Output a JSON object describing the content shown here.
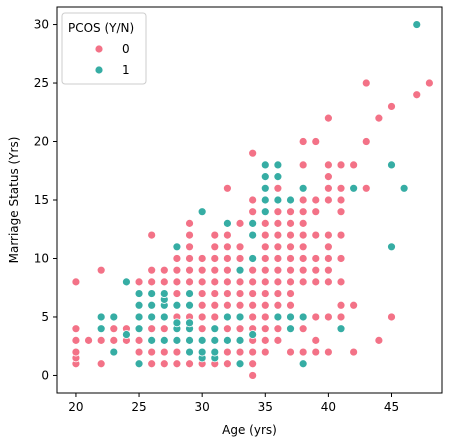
{
  "chart_data": {
    "type": "scatter",
    "title": "",
    "xlabel": "Age (yrs)",
    "ylabel": "Marriage Status (Yrs)",
    "xlim": [
      18.5,
      49.0
    ],
    "ylim": [
      -1.5,
      31.5
    ],
    "xticks": [
      20,
      25,
      30,
      35,
      40,
      45
    ],
    "yticks": [
      0,
      5,
      10,
      15,
      20,
      25,
      30
    ],
    "grid": false,
    "legend": {
      "title": "PCOS (Y/N)",
      "placement": "top-left"
    },
    "series": [
      {
        "name": "0",
        "color": "#f37287",
        "points": [
          [
            20,
            1
          ],
          [
            20,
            1.5
          ],
          [
            20,
            2
          ],
          [
            20,
            3
          ],
          [
            20,
            4
          ],
          [
            20,
            8
          ],
          [
            21,
            3
          ],
          [
            22,
            1
          ],
          [
            22,
            3
          ],
          [
            22,
            4
          ],
          [
            22,
            9
          ],
          [
            23,
            2
          ],
          [
            23,
            3
          ],
          [
            23,
            4
          ],
          [
            24,
            3
          ],
          [
            24,
            4
          ],
          [
            25,
            1
          ],
          [
            25,
            2
          ],
          [
            25,
            3
          ],
          [
            25,
            4
          ],
          [
            25,
            5
          ],
          [
            25,
            6
          ],
          [
            25,
            8
          ],
          [
            26,
            1
          ],
          [
            26,
            2
          ],
          [
            26,
            3
          ],
          [
            26,
            4
          ],
          [
            26,
            5
          ],
          [
            26,
            6
          ],
          [
            26,
            7
          ],
          [
            26,
            8
          ],
          [
            26,
            9
          ],
          [
            26,
            12
          ],
          [
            27,
            1
          ],
          [
            27,
            2
          ],
          [
            27,
            3
          ],
          [
            27,
            4
          ],
          [
            27,
            5
          ],
          [
            27,
            6
          ],
          [
            27,
            7
          ],
          [
            27,
            8
          ],
          [
            27,
            9
          ],
          [
            28,
            1
          ],
          [
            28,
            2
          ],
          [
            28,
            3
          ],
          [
            28,
            4
          ],
          [
            28,
            5
          ],
          [
            28,
            6
          ],
          [
            28,
            7
          ],
          [
            28,
            8
          ],
          [
            28,
            9
          ],
          [
            28,
            10
          ],
          [
            28,
            11
          ],
          [
            29,
            1
          ],
          [
            29,
            2
          ],
          [
            29,
            3
          ],
          [
            29,
            4
          ],
          [
            29,
            5
          ],
          [
            29,
            6
          ],
          [
            29,
            7
          ],
          [
            29,
            8
          ],
          [
            29,
            9
          ],
          [
            29,
            10
          ],
          [
            29,
            11
          ],
          [
            29,
            12
          ],
          [
            29,
            13
          ],
          [
            30,
            1
          ],
          [
            30,
            2
          ],
          [
            30,
            3
          ],
          [
            30,
            4
          ],
          [
            30,
            5
          ],
          [
            30,
            6
          ],
          [
            30,
            7
          ],
          [
            30,
            8
          ],
          [
            30,
            9
          ],
          [
            30,
            10
          ],
          [
            31,
            1
          ],
          [
            31,
            2
          ],
          [
            31,
            3
          ],
          [
            31,
            4
          ],
          [
            31,
            5
          ],
          [
            31,
            6
          ],
          [
            31,
            7
          ],
          [
            31,
            8
          ],
          [
            31,
            9
          ],
          [
            31,
            10
          ],
          [
            31,
            11
          ],
          [
            31,
            12
          ],
          [
            32,
            1
          ],
          [
            32,
            2
          ],
          [
            32,
            3
          ],
          [
            32,
            4
          ],
          [
            32,
            5
          ],
          [
            32,
            6
          ],
          [
            32,
            7
          ],
          [
            32,
            8
          ],
          [
            32,
            9
          ],
          [
            32,
            10
          ],
          [
            32,
            11
          ],
          [
            32,
            12
          ],
          [
            32,
            16
          ],
          [
            33,
            1
          ],
          [
            33,
            2
          ],
          [
            33,
            3
          ],
          [
            33,
            4
          ],
          [
            33,
            5
          ],
          [
            33,
            6
          ],
          [
            33,
            7
          ],
          [
            33,
            8
          ],
          [
            33,
            9
          ],
          [
            33,
            10
          ],
          [
            33,
            11
          ],
          [
            33,
            13
          ],
          [
            34,
            0
          ],
          [
            34,
            1
          ],
          [
            34,
            2
          ],
          [
            34,
            3
          ],
          [
            34,
            4
          ],
          [
            34,
            5
          ],
          [
            34,
            6
          ],
          [
            34,
            7
          ],
          [
            34,
            8
          ],
          [
            34,
            9
          ],
          [
            34,
            10
          ],
          [
            34,
            12
          ],
          [
            34,
            13
          ],
          [
            34,
            14
          ],
          [
            34,
            15
          ],
          [
            34,
            19
          ],
          [
            35,
            2
          ],
          [
            35,
            3
          ],
          [
            35,
            4
          ],
          [
            35,
            5
          ],
          [
            35,
            6
          ],
          [
            35,
            7
          ],
          [
            35,
            8
          ],
          [
            35,
            9
          ],
          [
            35,
            10
          ],
          [
            35,
            11
          ],
          [
            35,
            12
          ],
          [
            35,
            13
          ],
          [
            35,
            14
          ],
          [
            35,
            15
          ],
          [
            35,
            16
          ],
          [
            35,
            17
          ],
          [
            36,
            3
          ],
          [
            36,
            4
          ],
          [
            36,
            6
          ],
          [
            36,
            7
          ],
          [
            36,
            8
          ],
          [
            36,
            9
          ],
          [
            36,
            10
          ],
          [
            36,
            11
          ],
          [
            36,
            12
          ],
          [
            36,
            13
          ],
          [
            36,
            14
          ],
          [
            36,
            15
          ],
          [
            36,
            16
          ],
          [
            36,
            17
          ],
          [
            37,
            2
          ],
          [
            37,
            4
          ],
          [
            37,
            5
          ],
          [
            37,
            6
          ],
          [
            37,
            7
          ],
          [
            37,
            8
          ],
          [
            37,
            9
          ],
          [
            37,
            10
          ],
          [
            37,
            11
          ],
          [
            37,
            12
          ],
          [
            37,
            13
          ],
          [
            37,
            14
          ],
          [
            38,
            1
          ],
          [
            38,
            2
          ],
          [
            38,
            4
          ],
          [
            38,
            8
          ],
          [
            38,
            9
          ],
          [
            38,
            10
          ],
          [
            38,
            11
          ],
          [
            38,
            12
          ],
          [
            38,
            13
          ],
          [
            38,
            14
          ],
          [
            38,
            15
          ],
          [
            38,
            18
          ],
          [
            38,
            20
          ],
          [
            39,
            2
          ],
          [
            39,
            3
          ],
          [
            39,
            5
          ],
          [
            39,
            8
          ],
          [
            39,
            9
          ],
          [
            39,
            10
          ],
          [
            39,
            12
          ],
          [
            39,
            14
          ],
          [
            39,
            15
          ],
          [
            39,
            20
          ],
          [
            40,
            2
          ],
          [
            40,
            5
          ],
          [
            40,
            8
          ],
          [
            40,
            9
          ],
          [
            40,
            10
          ],
          [
            40,
            11
          ],
          [
            40,
            12
          ],
          [
            40,
            15
          ],
          [
            40,
            16
          ],
          [
            40,
            17
          ],
          [
            40,
            18
          ],
          [
            40,
            22
          ],
          [
            41,
            5
          ],
          [
            41,
            6
          ],
          [
            41,
            8
          ],
          [
            41,
            10
          ],
          [
            41,
            12
          ],
          [
            41,
            14
          ],
          [
            41,
            15
          ],
          [
            41,
            16
          ],
          [
            41,
            18
          ],
          [
            42,
            2
          ],
          [
            42,
            6
          ],
          [
            42,
            18
          ],
          [
            43,
            16
          ],
          [
            43,
            20
          ],
          [
            43,
            25
          ],
          [
            44,
            3
          ],
          [
            44,
            22
          ],
          [
            45,
            5
          ],
          [
            45,
            23
          ],
          [
            47,
            24
          ],
          [
            48,
            25
          ]
        ]
      },
      {
        "name": "1",
        "color": "#36ada4",
        "points": [
          [
            22,
            4
          ],
          [
            22,
            5
          ],
          [
            23,
            2
          ],
          [
            23,
            5
          ],
          [
            24,
            3.5
          ],
          [
            24,
            8
          ],
          [
            25,
            1
          ],
          [
            25,
            4
          ],
          [
            25,
            5
          ],
          [
            25,
            6
          ],
          [
            25,
            7
          ],
          [
            26,
            3
          ],
          [
            26,
            5
          ],
          [
            26,
            6
          ],
          [
            26,
            7
          ],
          [
            27,
            3
          ],
          [
            27,
            5
          ],
          [
            27,
            6
          ],
          [
            27,
            6.5
          ],
          [
            27,
            7
          ],
          [
            28,
            3
          ],
          [
            28,
            4
          ],
          [
            28,
            4.5
          ],
          [
            28,
            6
          ],
          [
            28,
            11
          ],
          [
            29,
            2
          ],
          [
            29,
            3
          ],
          [
            29,
            4
          ],
          [
            29,
            4.5
          ],
          [
            29,
            6
          ],
          [
            29,
            7
          ],
          [
            30,
            1.5
          ],
          [
            30,
            2
          ],
          [
            30,
            3
          ],
          [
            30,
            14
          ],
          [
            31,
            1.5
          ],
          [
            31,
            2
          ],
          [
            31,
            3
          ],
          [
            31,
            4
          ],
          [
            32,
            3
          ],
          [
            32,
            5
          ],
          [
            32,
            13
          ],
          [
            33,
            1
          ],
          [
            33,
            3
          ],
          [
            33,
            5
          ],
          [
            33,
            9
          ],
          [
            34,
            3.5
          ],
          [
            34,
            10
          ],
          [
            34,
            12
          ],
          [
            34,
            13
          ],
          [
            35,
            14
          ],
          [
            35,
            15
          ],
          [
            35,
            16
          ],
          [
            35,
            17
          ],
          [
            35,
            18
          ],
          [
            36,
            5
          ],
          [
            36,
            15
          ],
          [
            36,
            17
          ],
          [
            36,
            18
          ],
          [
            37,
            4
          ],
          [
            37,
            5
          ],
          [
            37,
            15
          ],
          [
            38,
            1
          ],
          [
            38,
            5
          ],
          [
            38,
            16
          ],
          [
            41,
            4
          ],
          [
            42,
            16
          ],
          [
            45,
            11
          ],
          [
            45,
            18
          ],
          [
            46,
            16
          ],
          [
            47,
            30
          ]
        ]
      }
    ]
  }
}
